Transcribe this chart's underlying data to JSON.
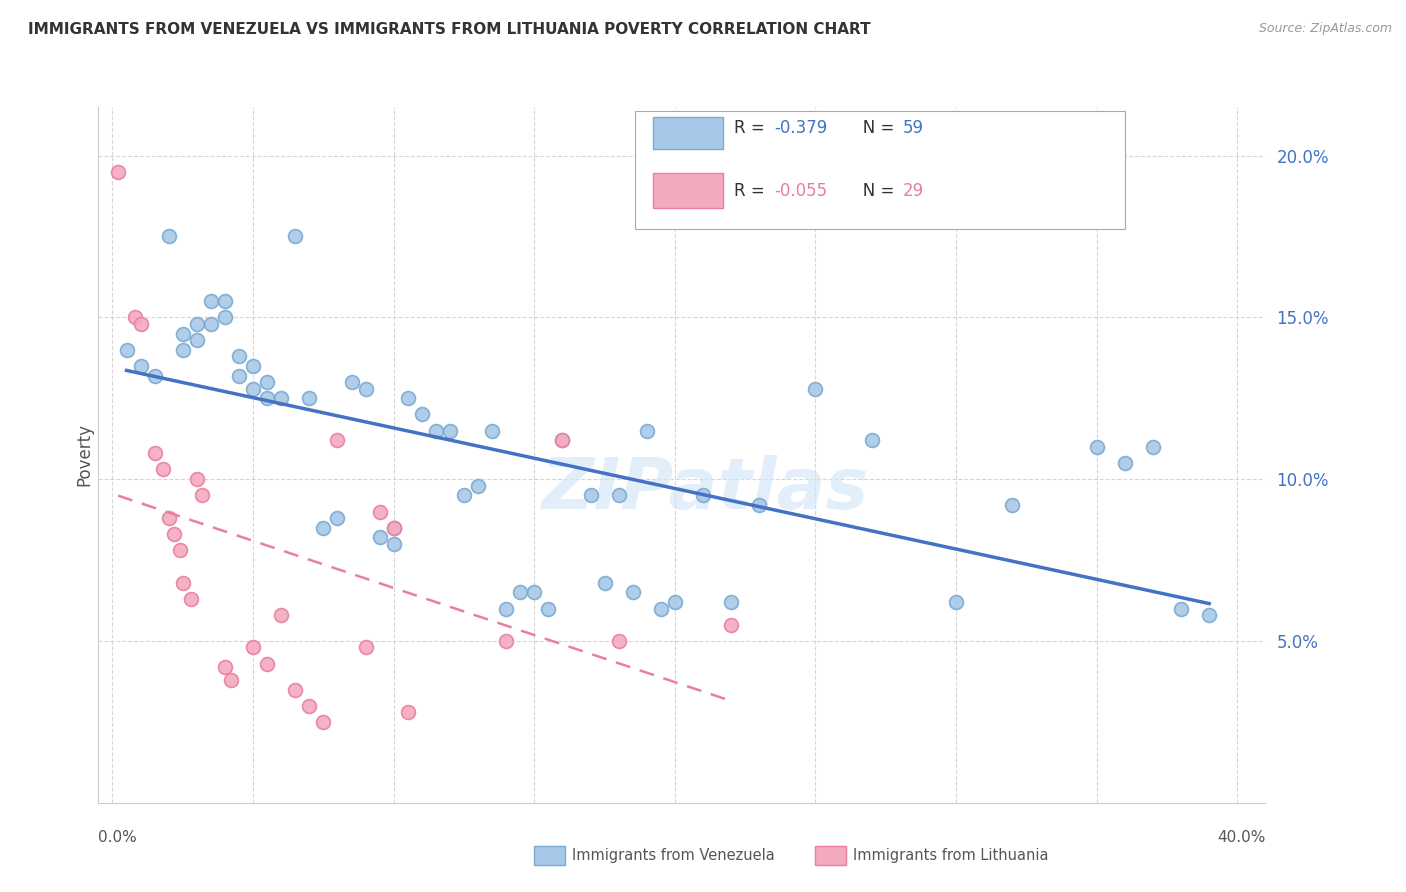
{
  "title": "IMMIGRANTS FROM VENEZUELA VS IMMIGRANTS FROM LITHUANIA POVERTY CORRELATION CHART",
  "source": "Source: ZipAtlas.com",
  "ylabel": "Poverty",
  "ylim": [
    0.0,
    0.215
  ],
  "xlim": [
    -0.005,
    0.41
  ],
  "y_ticks": [
    0.05,
    0.1,
    0.15,
    0.2
  ],
  "y_tick_labels": [
    "5.0%",
    "10.0%",
    "15.0%",
    "20.0%"
  ],
  "x_ticks": [
    0.0,
    0.05,
    0.1,
    0.15,
    0.2,
    0.25,
    0.3,
    0.35,
    0.4
  ],
  "venezuela_color": "#A8C8E8",
  "lithuania_color": "#F4AABE",
  "venezuela_edge_color": "#7AAAD0",
  "lithuania_edge_color": "#E87FA0",
  "venezuela_line_color": "#4472C4",
  "lithuania_line_color": "#E87FA0",
  "legend_r1_text": "R = ",
  "legend_r1_val": "-0.379",
  "legend_r1_n": "N = ",
  "legend_r1_nval": "59",
  "legend_r2_text": "R = ",
  "legend_r2_val": "-0.055",
  "legend_r2_n": "N = ",
  "legend_r2_nval": "29",
  "venezuela_scatter_x": [
    0.005,
    0.01,
    0.015,
    0.02,
    0.025,
    0.025,
    0.03,
    0.03,
    0.035,
    0.035,
    0.04,
    0.04,
    0.045,
    0.045,
    0.05,
    0.05,
    0.055,
    0.055,
    0.06,
    0.065,
    0.07,
    0.075,
    0.08,
    0.085,
    0.09,
    0.095,
    0.1,
    0.1,
    0.105,
    0.11,
    0.115,
    0.12,
    0.125,
    0.13,
    0.135,
    0.14,
    0.145,
    0.15,
    0.155,
    0.16,
    0.17,
    0.175,
    0.18,
    0.185,
    0.19,
    0.195,
    0.2,
    0.21,
    0.22,
    0.23,
    0.25,
    0.27,
    0.3,
    0.32,
    0.35,
    0.36,
    0.37,
    0.38,
    0.39
  ],
  "venezuela_scatter_y": [
    0.14,
    0.135,
    0.132,
    0.175,
    0.145,
    0.14,
    0.148,
    0.143,
    0.155,
    0.148,
    0.155,
    0.15,
    0.138,
    0.132,
    0.135,
    0.128,
    0.13,
    0.125,
    0.125,
    0.175,
    0.125,
    0.085,
    0.088,
    0.13,
    0.128,
    0.082,
    0.085,
    0.08,
    0.125,
    0.12,
    0.115,
    0.115,
    0.095,
    0.098,
    0.115,
    0.06,
    0.065,
    0.065,
    0.06,
    0.112,
    0.095,
    0.068,
    0.095,
    0.065,
    0.115,
    0.06,
    0.062,
    0.095,
    0.062,
    0.092,
    0.128,
    0.112,
    0.062,
    0.092,
    0.11,
    0.105,
    0.11,
    0.06,
    0.058
  ],
  "lithuania_scatter_x": [
    0.002,
    0.008,
    0.01,
    0.015,
    0.018,
    0.02,
    0.022,
    0.024,
    0.025,
    0.028,
    0.03,
    0.032,
    0.04,
    0.042,
    0.05,
    0.055,
    0.06,
    0.065,
    0.07,
    0.075,
    0.08,
    0.09,
    0.095,
    0.1,
    0.105,
    0.14,
    0.16,
    0.18,
    0.22
  ],
  "lithuania_scatter_y": [
    0.195,
    0.15,
    0.148,
    0.108,
    0.103,
    0.088,
    0.083,
    0.078,
    0.068,
    0.063,
    0.1,
    0.095,
    0.042,
    0.038,
    0.048,
    0.043,
    0.058,
    0.035,
    0.03,
    0.025,
    0.112,
    0.048,
    0.09,
    0.085,
    0.028,
    0.05,
    0.112,
    0.05,
    0.055
  ],
  "background_color": "#FFFFFF",
  "grid_color": "#CCCCCC",
  "watermark": "ZIPatlas"
}
